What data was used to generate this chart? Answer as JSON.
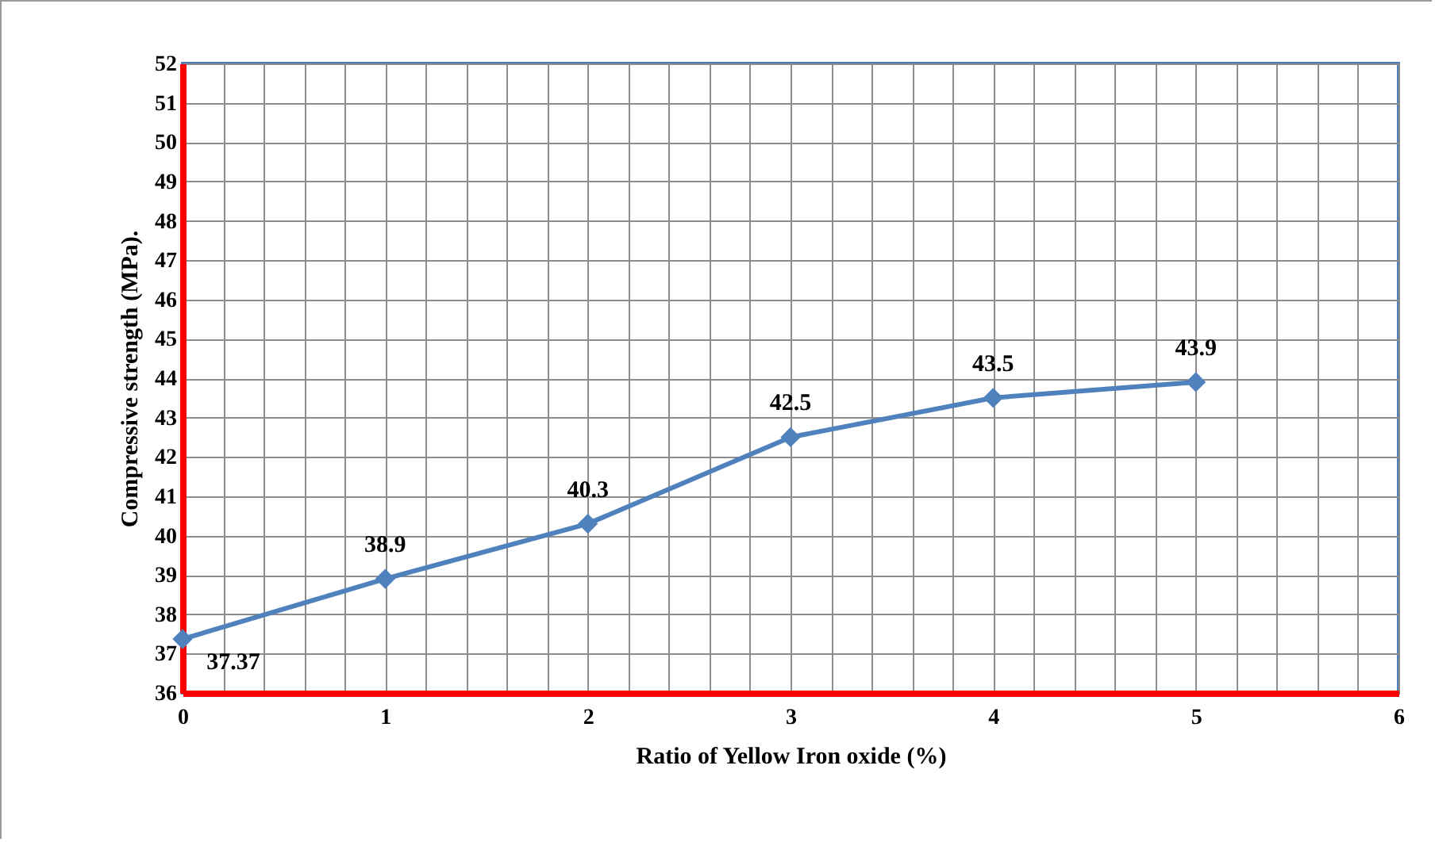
{
  "chart_data": {
    "type": "line",
    "xlabel": "Ratio of Yellow Iron oxide (%)",
    "ylabel": "Compressive strength (MPa).",
    "x": [
      0,
      1,
      2,
      3,
      4,
      5
    ],
    "series": [
      {
        "color": "#4f81bd",
        "values": [
          37.37,
          38.9,
          40.3,
          42.5,
          43.5,
          43.9
        ]
      }
    ],
    "xlim": [
      0,
      6
    ],
    "xticks": [
      0,
      {
        "value": 0.2,
        "label": null
      },
      {
        "value": 0.4,
        "label": null
      },
      {
        "value": 0.6,
        "label": null
      },
      {
        "value": 0.8,
        "label": null
      },
      1,
      {
        "value": 1.2,
        "label": null
      },
      {
        "value": 1.4,
        "label": null
      },
      {
        "value": 1.6,
        "label": null
      },
      {
        "value": 1.8,
        "label": null
      },
      2,
      {
        "value": 2.2,
        "label": null
      },
      {
        "value": 2.4,
        "label": null
      },
      {
        "value": 2.6,
        "label": null
      },
      {
        "value": 2.8,
        "label": null
      },
      3,
      {
        "value": 3.2,
        "label": null
      },
      {
        "value": 3.4,
        "label": null
      },
      {
        "value": 3.6,
        "label": null
      },
      {
        "value": 3.8,
        "label": null
      },
      4,
      {
        "value": 4.2,
        "label": null
      },
      {
        "value": 4.4,
        "label": null
      },
      {
        "value": 4.6,
        "label": null
      },
      {
        "value": 4.8,
        "label": null
      },
      5,
      {
        "value": 5.2,
        "label": null
      },
      {
        "value": 5.4,
        "label": null
      },
      {
        "value": 5.6,
        "label": null
      },
      {
        "value": 5.8,
        "label": null
      },
      6
    ],
    "ylim": [
      36,
      52
    ],
    "yticks": [
      36,
      37,
      38,
      39,
      40,
      41,
      42,
      43,
      44,
      45,
      46,
      47,
      48,
      49,
      50,
      51,
      52
    ],
    "grid": true,
    "marker": "diamond",
    "line_style": "solid",
    "data_labels": true
  }
}
